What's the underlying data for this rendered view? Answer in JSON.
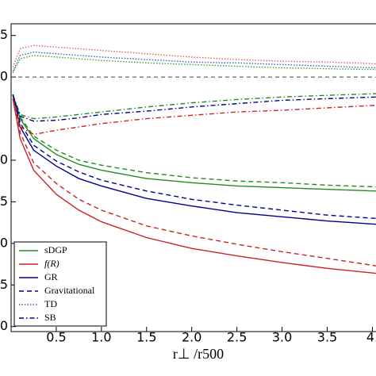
{
  "chart_data": {
    "type": "line",
    "xlabel": "r⊥ /r500",
    "xlim": [
      0,
      4.04
    ],
    "ylim": [
      -3.06,
      0.64
    ],
    "xticks": [
      0.5,
      {
        "value": 1.0,
        "label": "1.0"
      },
      1.5,
      {
        "value": 2.0,
        "label": "2.0"
      },
      2.5,
      {
        "value": 3.0,
        "label": "3.0"
      },
      3.5,
      {
        "value": 4.0,
        "label": "4."
      }
    ],
    "yticks": [
      {
        "value": 0.5,
        "label": "5"
      },
      0,
      {
        "value": -1.0,
        "label": "0"
      },
      {
        "value": -1.5,
        "label": "5"
      },
      {
        "value": -2.0,
        "label": "0"
      },
      {
        "value": -2.5,
        "label": "5"
      },
      {
        "value": -3.0,
        "label": "0"
      }
    ],
    "hline": 0,
    "x": [
      0.02,
      0.1,
      0.25,
      0.5,
      0.75,
      1.0,
      1.5,
      2.0,
      2.5,
      3.0,
      3.5,
      4.04
    ],
    "series": [
      {
        "color": "#228b22",
        "style": "solid",
        "values": [
          -0.21,
          -0.5,
          -0.74,
          -0.93,
          -1.05,
          -1.12,
          -1.22,
          -1.27,
          -1.31,
          -1.33,
          -1.35,
          -1.37
        ]
      },
      {
        "color": "#228b22",
        "style": "dashed",
        "values": [
          -0.21,
          -0.48,
          -0.71,
          -0.88,
          -1.0,
          -1.06,
          -1.15,
          -1.21,
          -1.25,
          -1.27,
          -1.3,
          -1.32
        ]
      },
      {
        "color": "#00008b",
        "style": "solid",
        "values": [
          -0.21,
          -0.6,
          -0.88,
          -1.07,
          -1.22,
          -1.31,
          -1.46,
          -1.55,
          -1.63,
          -1.68,
          -1.73,
          -1.77
        ]
      },
      {
        "color": "#00008b",
        "style": "dashed",
        "values": [
          -0.21,
          -0.55,
          -0.82,
          -1.01,
          -1.14,
          -1.24,
          -1.37,
          -1.47,
          -1.54,
          -1.6,
          -1.66,
          -1.7
        ]
      },
      {
        "color": "#cc2222",
        "style": "solid",
        "values": [
          -0.26,
          -0.74,
          -1.12,
          -1.41,
          -1.6,
          -1.74,
          -1.93,
          -2.06,
          -2.15,
          -2.23,
          -2.3,
          -2.36
        ]
      },
      {
        "color": "#cc2222",
        "style": "dashed",
        "values": [
          -0.26,
          -0.67,
          -1.03,
          -1.28,
          -1.47,
          -1.6,
          -1.79,
          -1.91,
          -2.01,
          -2.1,
          -2.18,
          -2.27
        ]
      },
      {
        "color": "#e06060",
        "style": "dotted",
        "values": [
          0.12,
          0.34,
          0.38,
          0.36,
          0.34,
          0.32,
          0.28,
          0.24,
          0.21,
          0.19,
          0.18,
          0.16
        ]
      },
      {
        "color": "#4060c0",
        "style": "dotted",
        "values": [
          0.07,
          0.26,
          0.3,
          0.28,
          0.26,
          0.24,
          0.21,
          0.18,
          0.17,
          0.15,
          0.13,
          0.11
        ]
      },
      {
        "color": "#40a040",
        "style": "dotted",
        "values": [
          0.05,
          0.22,
          0.26,
          0.24,
          0.22,
          0.2,
          0.17,
          0.15,
          0.13,
          0.11,
          0.1,
          0.09
        ]
      },
      {
        "color": "#cc2222",
        "style": "dashdot",
        "values": [
          -0.22,
          -0.6,
          -0.69,
          -0.64,
          -0.6,
          -0.56,
          -0.5,
          -0.46,
          -0.42,
          -0.4,
          -0.37,
          -0.34
        ]
      },
      {
        "color": "#228b22",
        "style": "dashdot",
        "values": [
          -0.22,
          -0.45,
          -0.5,
          -0.48,
          -0.45,
          -0.42,
          -0.36,
          -0.31,
          -0.27,
          -0.24,
          -0.22,
          -0.2
        ]
      },
      {
        "color": "#00008b",
        "style": "dashdot",
        "values": [
          -0.22,
          -0.47,
          -0.53,
          -0.52,
          -0.49,
          -0.45,
          -0.41,
          -0.36,
          -0.32,
          -0.28,
          -0.26,
          -0.24
        ]
      }
    ],
    "legend": [
      {
        "label": "sDGP",
        "color": "#228b22",
        "style": "solid"
      },
      {
        "label": "f(R)",
        "color": "#cc2222",
        "style": "solid"
      },
      {
        "label": "GR",
        "color": "#00008b",
        "style": "solid"
      },
      {
        "label": "Gravitational",
        "color": "#00008b",
        "style": "dashed"
      },
      {
        "label": "TD",
        "color": "#4060c0",
        "style": "dotted"
      },
      {
        "label": "SB",
        "color": "#00008b",
        "style": "dashdot"
      }
    ]
  }
}
